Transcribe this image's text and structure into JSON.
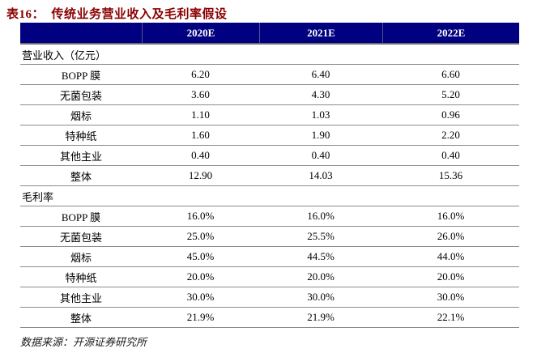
{
  "page": {
    "title": "表16：  传统业务营业收入及毛利率假设",
    "source_note": "数据来源：开源证券研究所"
  },
  "colors": {
    "title_text": "#8B0000",
    "header_bg": "#000080",
    "header_text": "#FFFFFF",
    "grid_line": "#8C8C8C"
  },
  "table": {
    "columns": [
      "",
      "2020E",
      "2021E",
      "2022E"
    ],
    "sections": [
      {
        "header": "营业收入（亿元）",
        "rows": [
          {
            "label": "BOPP 膜",
            "values": [
              "6.20",
              "6.40",
              "6.60"
            ]
          },
          {
            "label": "无菌包装",
            "values": [
              "3.60",
              "4.30",
              "5.20"
            ]
          },
          {
            "label": "烟标",
            "values": [
              "1.10",
              "1.03",
              "0.96"
            ]
          },
          {
            "label": "特种纸",
            "values": [
              "1.60",
              "1.90",
              "2.20"
            ]
          },
          {
            "label": "其他主业",
            "values": [
              "0.40",
              "0.40",
              "0.40"
            ]
          },
          {
            "label": "整体",
            "values": [
              "12.90",
              "14.03",
              "15.36"
            ]
          }
        ]
      },
      {
        "header": "毛利率",
        "rows": [
          {
            "label": "BOPP 膜",
            "values": [
              "16.0%",
              "16.0%",
              "16.0%"
            ]
          },
          {
            "label": "无菌包装",
            "values": [
              "25.0%",
              "25.5%",
              "26.0%"
            ]
          },
          {
            "label": "烟标",
            "values": [
              "45.0%",
              "44.5%",
              "44.0%"
            ]
          },
          {
            "label": "特种纸",
            "values": [
              "20.0%",
              "20.0%",
              "20.0%"
            ]
          },
          {
            "label": "其他主业",
            "values": [
              "30.0%",
              "30.0%",
              "30.0%"
            ]
          },
          {
            "label": "整体",
            "values": [
              "21.9%",
              "21.9%",
              "22.1%"
            ]
          }
        ]
      }
    ]
  }
}
